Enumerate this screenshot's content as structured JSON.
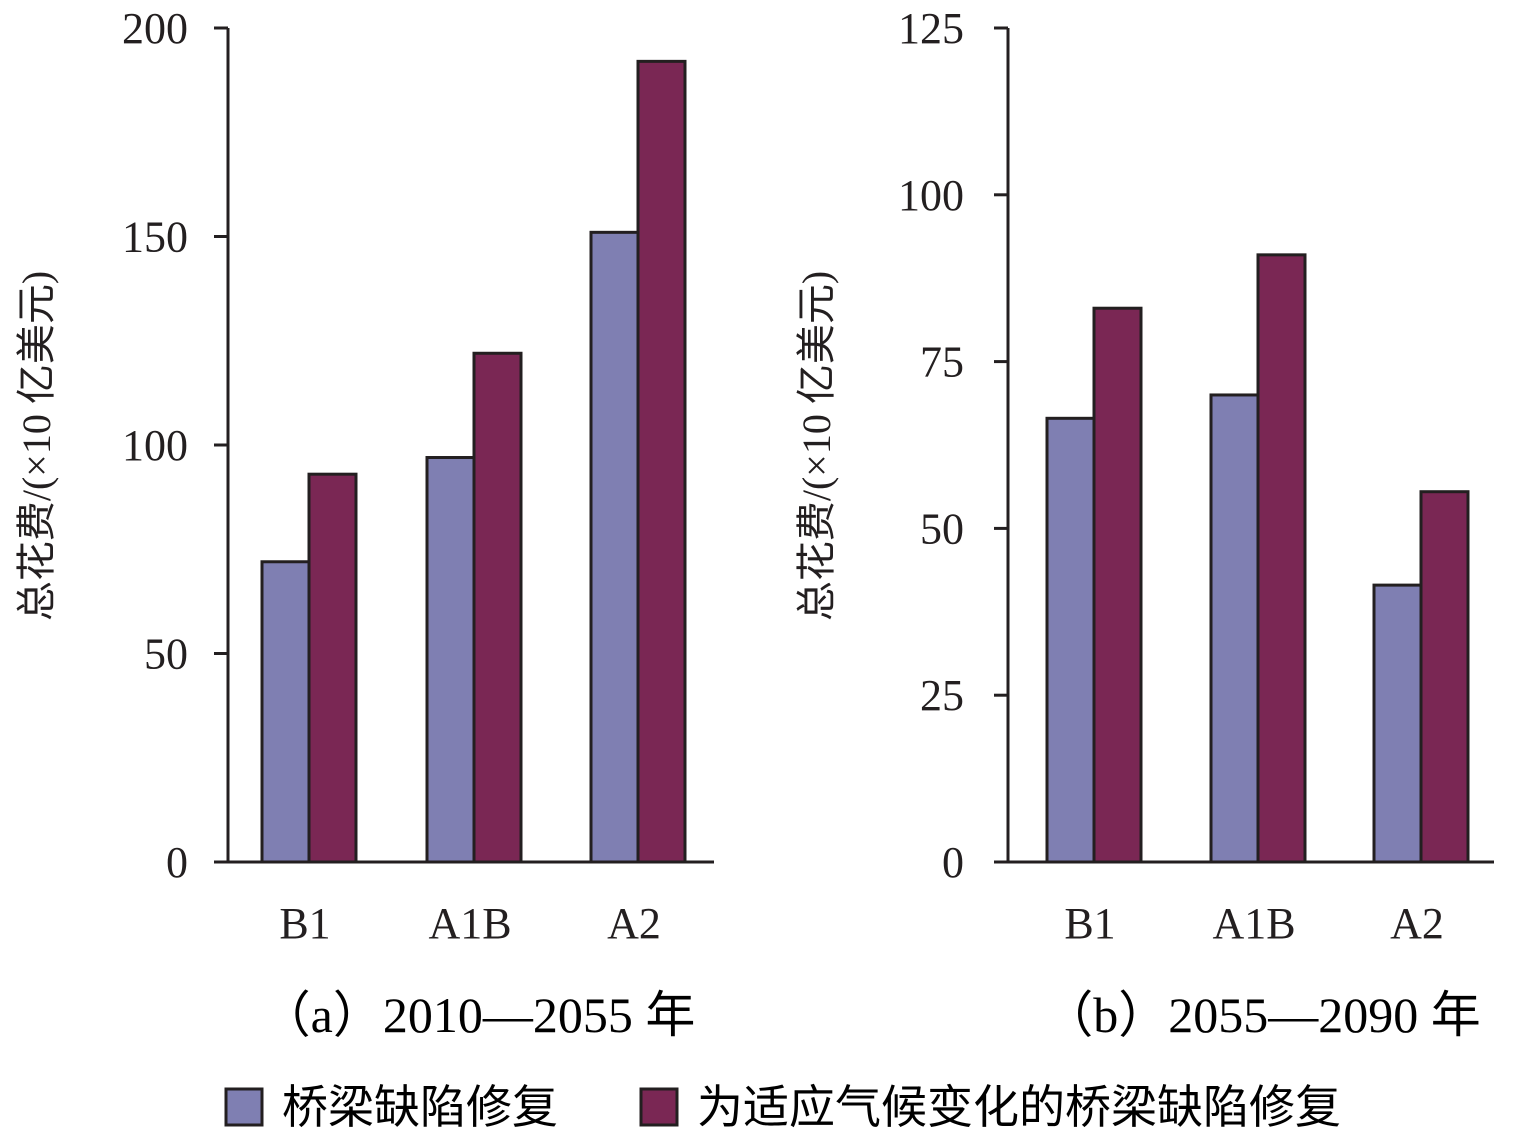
{
  "colors": {
    "series1": "#7f7fb2",
    "series2": "#7a2754",
    "axis": "#231f20",
    "text": "#231f20"
  },
  "legend": [
    {
      "label": "桥梁缺陷修复",
      "color": "#7f7fb2"
    },
    {
      "label": "为适应气候变化的桥梁缺陷修复",
      "color": "#7a2754"
    }
  ],
  "chart_data": [
    {
      "type": "bar",
      "caption": "（a）2010—2055 年",
      "ylabel": "总花费/(×10 亿美元)",
      "categories": [
        "B1",
        "A1B",
        "A2"
      ],
      "ylim": [
        0,
        200
      ],
      "yticks": [
        "0",
        "50",
        "100",
        "150",
        "200"
      ],
      "series": [
        {
          "name": "桥梁缺陷修复",
          "values": [
            72,
            97,
            151
          ]
        },
        {
          "name": "为适应气候变化的桥梁缺陷修复",
          "values": [
            93,
            122,
            192
          ]
        }
      ]
    },
    {
      "type": "bar",
      "caption": "（b）2055—2090 年",
      "ylabel": "总花费/(×10 亿美元)",
      "categories": [
        "B1",
        "A1B",
        "A2"
      ],
      "ylim": [
        0,
        125
      ],
      "yticks": [
        "0",
        "25",
        "50",
        "75",
        "100",
        "125"
      ],
      "series": [
        {
          "name": "桥梁缺陷修复",
          "values": [
            66.5,
            70,
            41.5
          ]
        },
        {
          "name": "为适应气候变化的桥梁缺陷修复",
          "values": [
            83,
            91,
            55.5
          ]
        }
      ]
    }
  ]
}
